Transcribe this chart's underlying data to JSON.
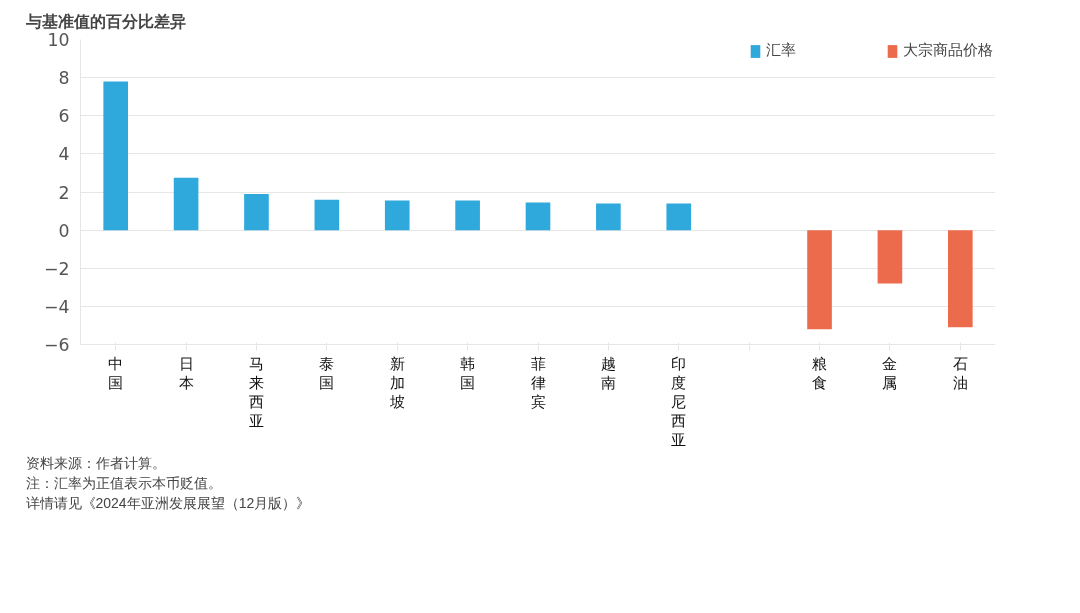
{
  "chart_data": {
    "type": "bar",
    "ylabel": "与基准值的百分比差异",
    "categories": [
      "中国",
      "日本",
      "马来西亚",
      "泰国",
      "新加坡",
      "韩国",
      "菲律宾",
      "越南",
      "印度尼西亚",
      null,
      "粮食",
      "金属",
      "石油"
    ],
    "series": [
      {
        "name": "汇率",
        "color": "#2fa8dc",
        "values": [
          7.8,
          2.75,
          1.9,
          1.6,
          1.55,
          1.55,
          1.45,
          1.4,
          1.4,
          null,
          null,
          null,
          null
        ]
      },
      {
        "name": "大宗商品价格",
        "color": "#ec6b4c",
        "values": [
          null,
          null,
          null,
          null,
          null,
          null,
          null,
          null,
          null,
          null,
          -5.2,
          -2.8,
          -5.1
        ]
      }
    ],
    "ylim": [
      -6,
      10
    ],
    "yticks": [
      -6,
      -4,
      -2,
      0,
      2,
      4,
      6,
      8,
      10
    ],
    "grid": "y",
    "legend": "top right",
    "annotations": [
      "资料来源：作者计算。",
      "注：汇率为正值表示本币贬值。",
      "详情请见《2024年亚洲发展展望（12月版）》"
    ]
  }
}
